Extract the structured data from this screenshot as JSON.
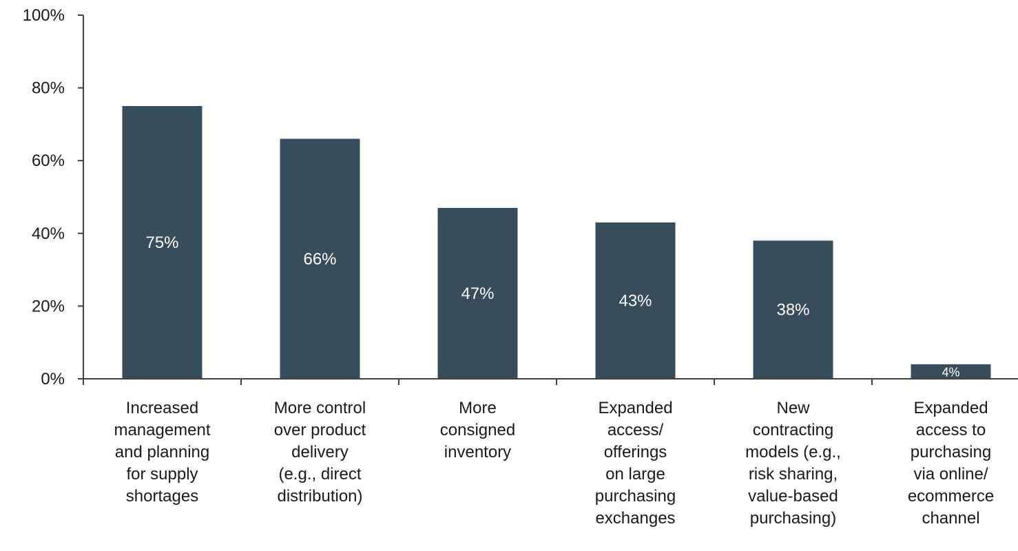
{
  "chart_data": {
    "type": "bar",
    "title": "",
    "xlabel": "",
    "ylabel": "",
    "ylim": [
      0,
      100
    ],
    "y_ticks": [
      0,
      20,
      40,
      60,
      80,
      100
    ],
    "y_tick_labels": [
      "0%",
      "20%",
      "40%",
      "60%",
      "80%",
      "100%"
    ],
    "grid": false,
    "bar_color": "#374d5c",
    "categories": [
      [
        "Increased",
        "management",
        "and planning",
        "for supply",
        "shortages"
      ],
      [
        "More control",
        "over product",
        "delivery",
        "(e.g., direct",
        "distribution)"
      ],
      [
        "More",
        "consigned",
        "inventory"
      ],
      [
        "Expanded",
        "access/",
        "offerings",
        "on large",
        "purchasing",
        "exchanges"
      ],
      [
        "New",
        "contracting",
        "models (e.g.,",
        "risk sharing,",
        "value-based",
        "purchasing)"
      ],
      [
        "Expanded",
        "access to",
        "purchasing",
        "via online/",
        "ecommerce",
        "channel"
      ]
    ],
    "values": [
      75,
      66,
      47,
      43,
      38,
      4
    ],
    "data_labels": [
      "75%",
      "66%",
      "47%",
      "43%",
      "38%",
      "4%"
    ]
  }
}
